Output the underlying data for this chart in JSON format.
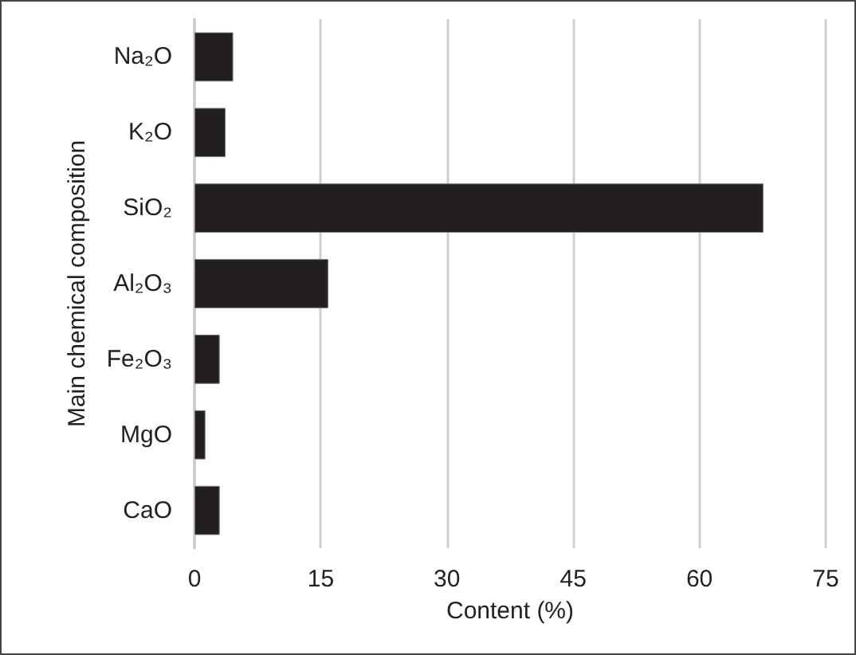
{
  "chart_data": {
    "type": "bar",
    "orientation": "horizontal",
    "categories": [
      "Na₂O",
      "K₂O",
      "SiO₂",
      "Al₂O₃",
      "Fe₂O₃",
      "MgO",
      "CaO"
    ],
    "values": [
      4.6,
      3.7,
      67.6,
      15.9,
      3.0,
      1.3,
      3.0
    ],
    "color": "#231f20",
    "xlabel": "Content (%)",
    "ylabel": "Main chemical composition",
    "xlim": [
      0,
      75
    ],
    "xticks": [
      0,
      15,
      30,
      45,
      60,
      75
    ],
    "grid": "x"
  }
}
